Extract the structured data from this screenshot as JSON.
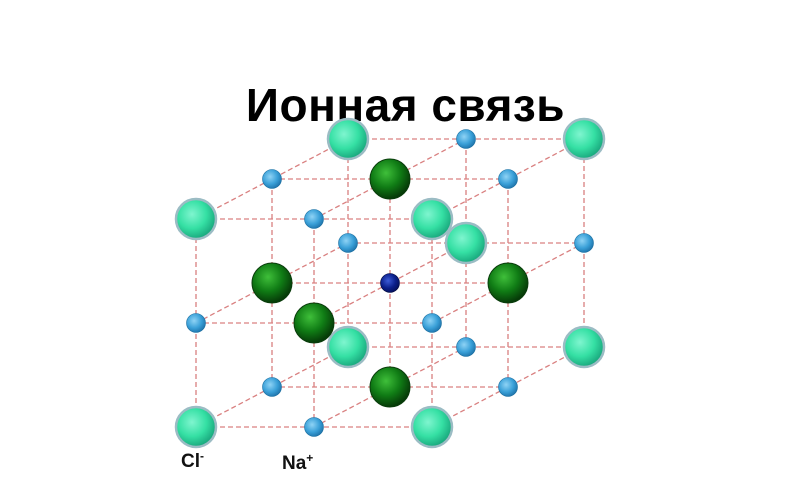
{
  "title": "Ионная связь",
  "legend": {
    "cl": {
      "base": "Cl",
      "charge": "-"
    },
    "na": {
      "base": "Na",
      "charge": "+"
    }
  },
  "colors": {
    "chloride_ion": "#35e0a4",
    "chloride_ion_edge": "#9bbcc4",
    "sodium_ion": "#3aa0d8",
    "dark_sphere": "#0f6b12",
    "center_ion": "#0b1f8a",
    "bond_lines": "#d98080"
  },
  "icons": {
    "chloride": "teal-sphere",
    "sodium": "blue-sphere",
    "dark": "dark-green-sphere"
  }
}
